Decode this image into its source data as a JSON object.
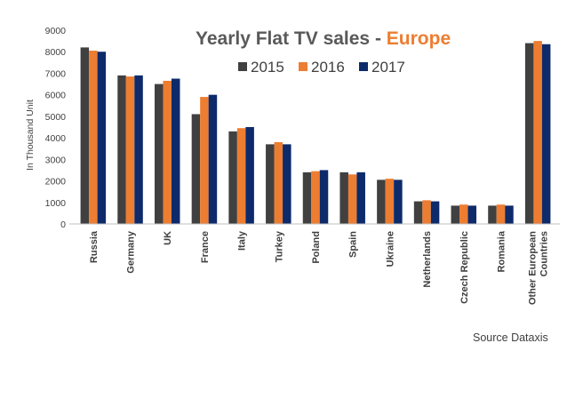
{
  "chart_data": {
    "type": "bar",
    "title": "Yearly Flat TV sales - ",
    "title_accent": "Europe",
    "ylabel": "In Thousand Unit",
    "xlabel": "",
    "ylim": [
      0,
      9000
    ],
    "yticks": [
      0,
      1000,
      2000,
      3000,
      4000,
      5000,
      6000,
      7000,
      8000,
      9000
    ],
    "grid": false,
    "legend_position": "top",
    "categories": [
      [
        "Russia"
      ],
      [
        "Germany"
      ],
      [
        "UK"
      ],
      [
        "France"
      ],
      [
        "Italy"
      ],
      [
        "Turkey"
      ],
      [
        "Poland"
      ],
      [
        "Spain"
      ],
      [
        "Ukraine"
      ],
      [
        "Netherlands"
      ],
      [
        "Czech Republic"
      ],
      [
        "Romania"
      ],
      [
        "Other European",
        "Countries"
      ]
    ],
    "series": [
      {
        "name": "2015",
        "color": "#404040",
        "values": [
          8200,
          6900,
          6500,
          5100,
          4300,
          3700,
          2400,
          2400,
          2050,
          1050,
          850,
          850,
          8400
        ]
      },
      {
        "name": "2016",
        "color": "#ed7d31",
        "values": [
          8050,
          6850,
          6650,
          5900,
          4450,
          3800,
          2450,
          2300,
          2100,
          1100,
          900,
          900,
          8500
        ]
      },
      {
        "name": "2017",
        "color": "#0d2a6b",
        "values": [
          8000,
          6900,
          6750,
          6000,
          4500,
          3700,
          2500,
          2400,
          2050,
          1050,
          850,
          850,
          8350
        ]
      }
    ],
    "source_note": "Source Dataxis"
  }
}
